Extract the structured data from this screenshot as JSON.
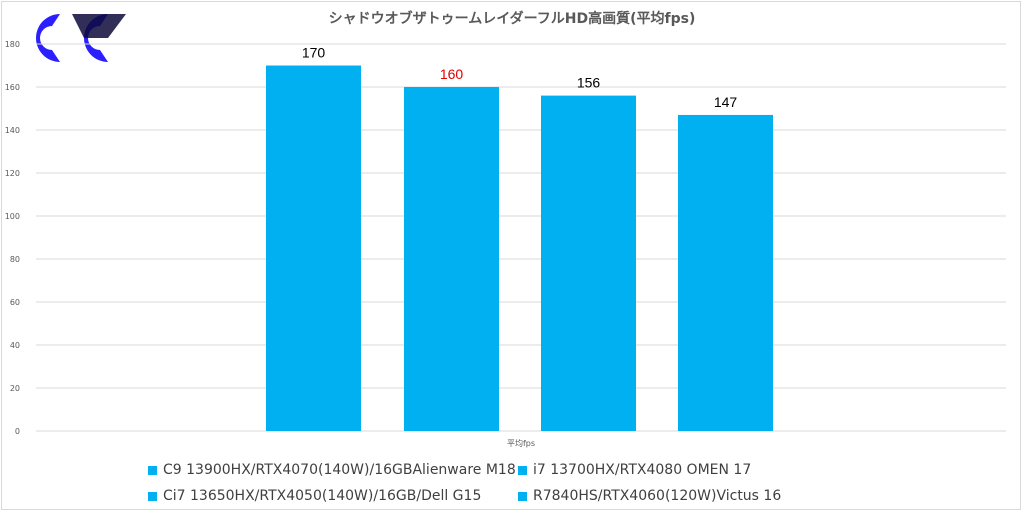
{
  "chart_data": {
    "type": "bar",
    "title": "シャドウオブザトゥームレイダーフルHD高画質(平均fps)",
    "xlabel": "平均fps",
    "ylabel": "",
    "ylim": [
      0,
      180
    ],
    "yticks": [
      0,
      20,
      40,
      60,
      80,
      100,
      120,
      140,
      160,
      180
    ],
    "grid": true,
    "legend_position": "bottom",
    "series": [
      {
        "name": "C9 13900HX/RTX4070(140W)/16GBAlienware M18",
        "values": [
          170
        ],
        "label_color": "#000000"
      },
      {
        "name": "Ci7 13650HX/RTX4050(140W)/16GB/Dell G15",
        "values": [
          160
        ],
        "label_color": "#e00000"
      },
      {
        "name": "i7 13700HX/RTX4080 OMEN 17",
        "values": [
          156
        ],
        "label_color": "#000000"
      },
      {
        "name": "R7840HS/RTX4060(120W)Victus 16",
        "values": [
          147
        ],
        "label_color": "#000000"
      }
    ],
    "bar_color": "#00b0f0"
  }
}
